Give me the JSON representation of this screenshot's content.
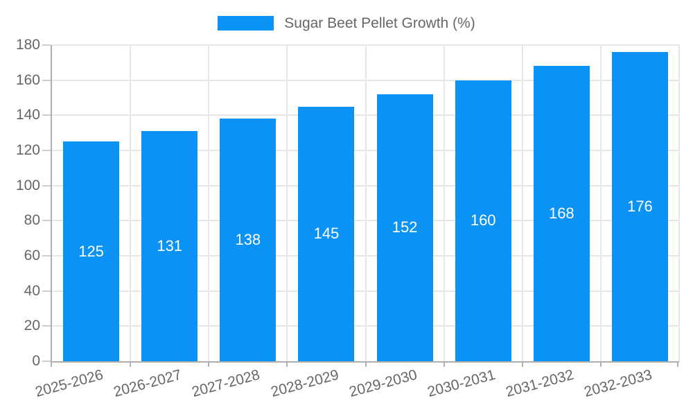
{
  "chart_data": {
    "type": "bar",
    "title": "",
    "legend": {
      "label": "Sugar Beet Pellet Growth (%)",
      "position": "top"
    },
    "categories": [
      "2025-2026",
      "2026-2027",
      "2027-2028",
      "2028-2029",
      "2029-2030",
      "2030-2031",
      "2031-2032",
      "2032-2033"
    ],
    "values": [
      125,
      131,
      138,
      145,
      152,
      160,
      168,
      176
    ],
    "value_labels": [
      "125",
      "131",
      "138",
      "145",
      "152",
      "160",
      "168",
      "176"
    ],
    "xlabel": "",
    "ylabel": "",
    "ylim": [
      0,
      180
    ],
    "ytick_step": 20,
    "grid": "on",
    "colors": {
      "bar": "#0B92F5",
      "bar_value_label": "#ffffff",
      "axis_text": "#666666",
      "grid_line": "#e6e6e6",
      "axis_line": "#b0b0b0",
      "tick_mark": "#cccccc"
    }
  }
}
